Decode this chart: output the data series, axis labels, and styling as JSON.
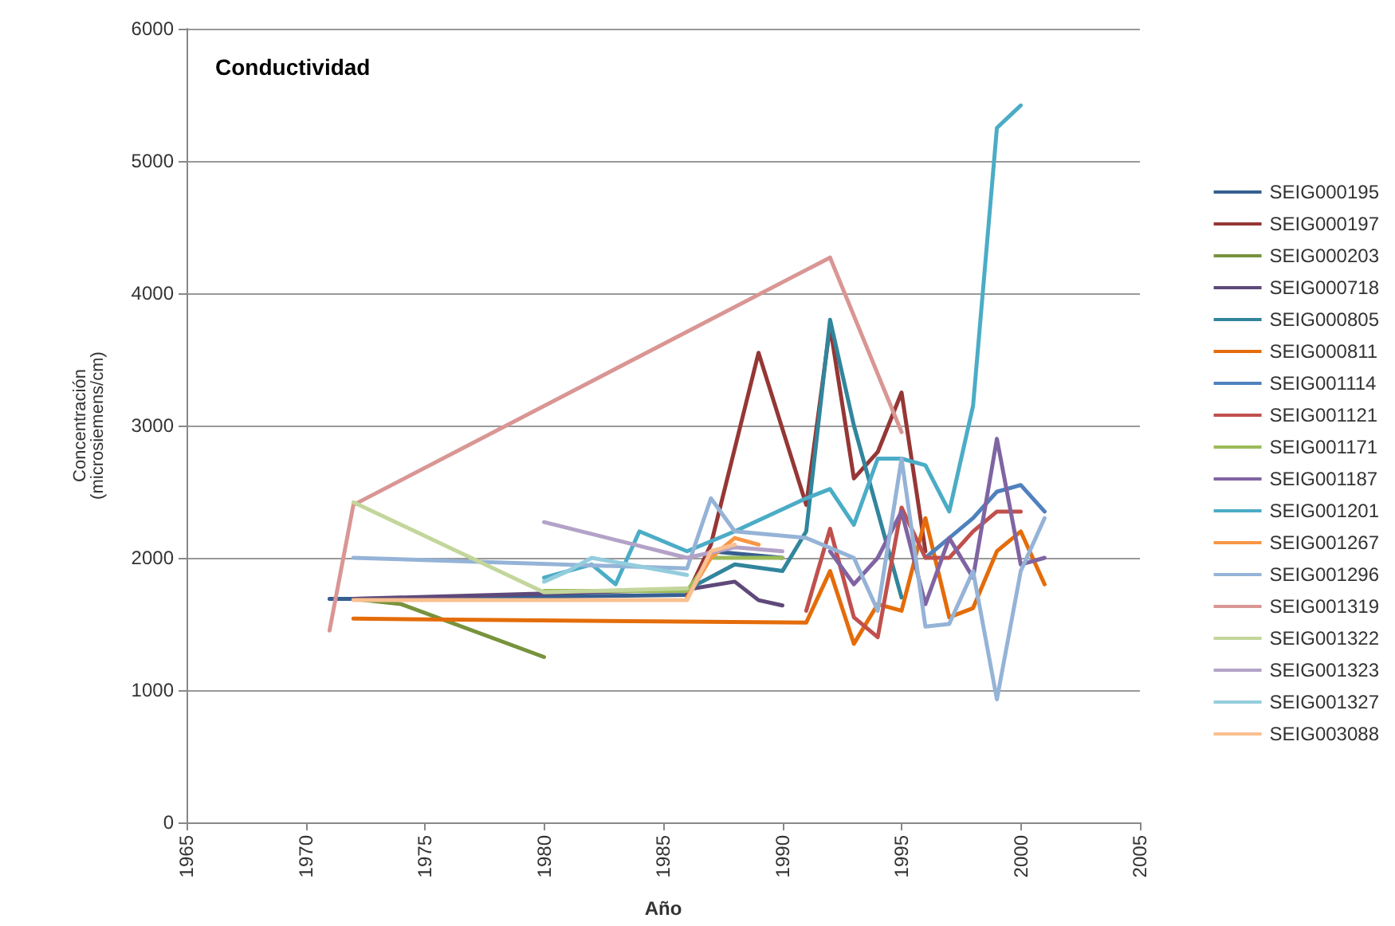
{
  "chart_data": {
    "type": "line",
    "title": "Conductividad",
    "xlabel": "Año",
    "ylabel": "Concentración (microsiemens/cm)",
    "xlim": [
      1965,
      2005
    ],
    "xticks": [
      1965,
      1970,
      1975,
      1980,
      1985,
      1990,
      1995,
      2000,
      2005
    ],
    "ylim": [
      0,
      6000
    ],
    "yticks": [
      0,
      1000,
      2000,
      3000,
      4000,
      5000,
      6000
    ],
    "grid": "y",
    "legend": "right",
    "marker": "none",
    "line_style": "solid",
    "series": [
      {
        "name": "SEIG000195",
        "color": "#365f91",
        "x": [
          1971,
          1972,
          1986,
          1987,
          1990
        ],
        "values": [
          1690,
          1690,
          1720,
          2050,
          2000
        ]
      },
      {
        "name": "SEIG000197",
        "color": "#953735",
        "x": [
          1986,
          1987,
          1989,
          1991,
          1992,
          1993,
          1994,
          1995,
          1996
        ],
        "values": [
          1720,
          2100,
          3550,
          2400,
          3750,
          2600,
          2800,
          3250,
          2050
        ]
      },
      {
        "name": "SEIG000203",
        "color": "#77933c",
        "x": [
          1972,
          1974,
          1980
        ],
        "values": [
          1690,
          1650,
          1250
        ]
      },
      {
        "name": "SEIG000718",
        "color": "#5f497a",
        "x": [
          1972,
          1986,
          1988,
          1989,
          1990
        ],
        "values": [
          1690,
          1760,
          1820,
          1680,
          1640
        ]
      },
      {
        "name": "SEIG000805",
        "color": "#31859c",
        "x": [
          1986,
          1988,
          1990,
          1991,
          1992,
          1993,
          1995
        ],
        "values": [
          1760,
          1950,
          1900,
          2200,
          3800,
          3000,
          1700
        ]
      },
      {
        "name": "SEIG000811",
        "color": "#e46c0a",
        "x": [
          1972,
          1991,
          1992,
          1993,
          1994,
          1995,
          1996,
          1997,
          1998,
          1999,
          2000,
          2001
        ],
        "values": [
          1540,
          1510,
          1900,
          1350,
          1650,
          1600,
          2300,
          1550,
          1620,
          2050,
          2200,
          1800
        ]
      },
      {
        "name": "SEIG001114",
        "color": "#4f81bd",
        "x": [
          1996,
          1997,
          1998,
          1999,
          2000,
          2001
        ],
        "values": [
          2000,
          2150,
          2300,
          2500,
          2550,
          2350
        ]
      },
      {
        "name": "SEIG001121",
        "color": "#c0504d",
        "x": [
          1991,
          1992,
          1993,
          1994,
          1995,
          1996,
          1997,
          1998,
          1999,
          2000
        ],
        "values": [
          1600,
          2220,
          1550,
          1400,
          2380,
          2000,
          2000,
          2200,
          2350,
          2350
        ]
      },
      {
        "name": "SEIG001171",
        "color": "#9bbb59",
        "x": [
          1980,
          1986,
          1987,
          1990
        ],
        "values": [
          1750,
          1750,
          2000,
          2000
        ]
      },
      {
        "name": "SEIG001187",
        "color": "#8064a2",
        "x": [
          1992,
          1993,
          1994,
          1995,
          1996,
          1997,
          1998,
          1999,
          2000,
          2001
        ],
        "values": [
          2050,
          1800,
          2000,
          2350,
          1650,
          2150,
          1850,
          2900,
          1950,
          2000
        ]
      },
      {
        "name": "SEIG001201",
        "color": "#4bacc6",
        "x": [
          1980,
          1982,
          1983,
          1984,
          1986,
          1988,
          1991,
          1992,
          1993,
          1994,
          1995,
          1996,
          1997,
          1998,
          1999,
          2000
        ],
        "values": [
          1850,
          1950,
          1800,
          2200,
          2050,
          2200,
          2450,
          2520,
          2250,
          2750,
          2750,
          2700,
          2350,
          3150,
          5250,
          5420
        ]
      },
      {
        "name": "SEIG001267",
        "color": "#f79646",
        "x": [
          1986,
          1987,
          1988,
          1989
        ],
        "values": [
          1700,
          2000,
          2150,
          2100
        ]
      },
      {
        "name": "SEIG001296",
        "color": "#95b3d7",
        "x": [
          1972,
          1986,
          1987,
          1988,
          1991,
          1993,
          1994,
          1995,
          1996,
          1997,
          1998,
          1999,
          2000,
          2001
        ],
        "values": [
          2000,
          1920,
          2450,
          2200,
          2150,
          2000,
          1600,
          2750,
          1480,
          1500,
          1900,
          930,
          1900,
          2300
        ]
      },
      {
        "name": "SEIG001319",
        "color": "#d99694",
        "x": [
          1971,
          1972,
          1992,
          1995
        ],
        "values": [
          1450,
          2400,
          4270,
          2950
        ]
      },
      {
        "name": "SEIG001322",
        "color": "#c3d69b",
        "x": [
          1972,
          1980,
          1986
        ],
        "values": [
          2420,
          1740,
          1770
        ]
      },
      {
        "name": "SEIG001323",
        "color": "#b3a2c7",
        "x": [
          1980,
          1986,
          1988,
          1990
        ],
        "values": [
          2270,
          2000,
          2080,
          2050
        ]
      },
      {
        "name": "SEIG001327",
        "color": "#93cddd",
        "x": [
          1980,
          1981,
          1982,
          1986
        ],
        "values": [
          1820,
          1900,
          2000,
          1870
        ]
      },
      {
        "name": "SEIG003088",
        "color": "#fac090",
        "x": [
          1972,
          1986,
          1987,
          1988
        ],
        "values": [
          1680,
          1680,
          2050,
          2100
        ]
      }
    ]
  }
}
